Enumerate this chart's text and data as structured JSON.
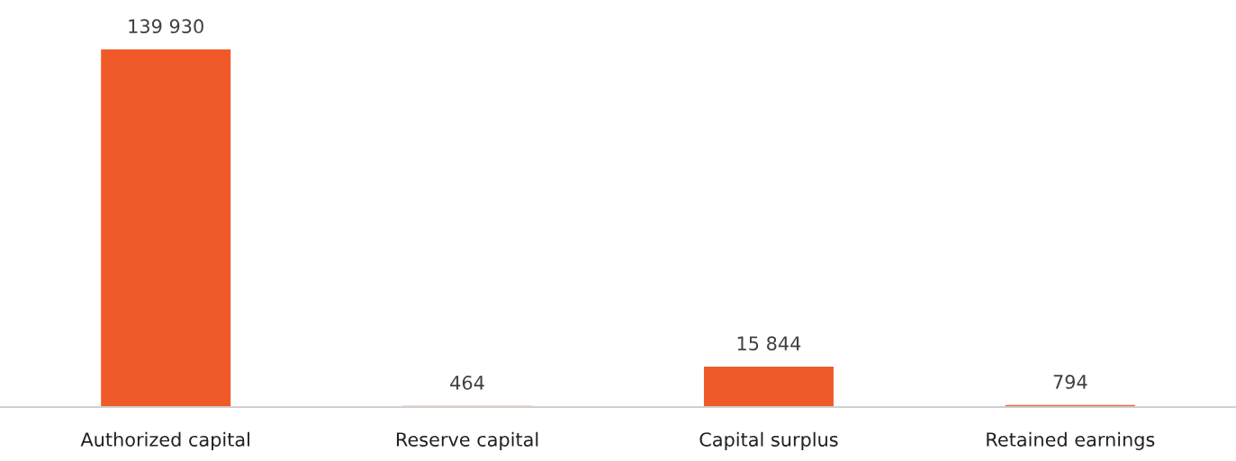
{
  "chart_data": {
    "type": "bar",
    "categories": [
      "Authorized capital",
      "Reserve capital",
      "Capital surplus",
      "Retained earnings"
    ],
    "values": [
      139930,
      464,
      15844,
      794
    ],
    "value_labels": [
      "139 930",
      "464",
      "15 844",
      "794"
    ],
    "color": "#f05a28",
    "grid": false,
    "legend": false
  }
}
